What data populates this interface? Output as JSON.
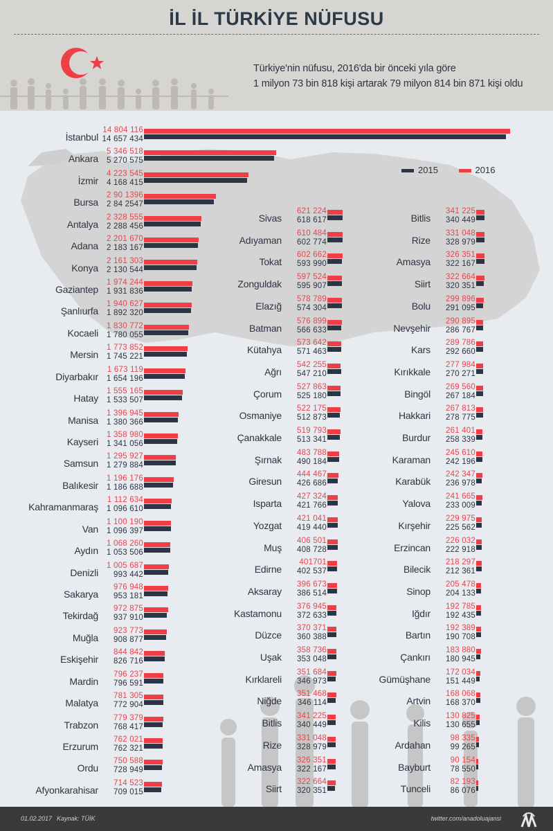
{
  "header": {
    "title": "İL İL TÜRKİYE NÜFUSU",
    "subtitle_line1": "Türkiye'nin nüfusu, 2016'da bir önceki yıla göre",
    "subtitle_line2": "1 milyon 73 bin 818 kişi artarak 79 milyon 814 bin 871 kişi oldu"
  },
  "legend": {
    "label_2015": "2015",
    "label_2016": "2016",
    "color_2015": "#2c3544",
    "color_2016": "#ef3e45"
  },
  "footer": {
    "date": "01.02.2017",
    "source": "Kaynak: TÜİK",
    "twitter": "twitter.com/anadoluajansi",
    "logo_text": "AA"
  },
  "chart_data": {
    "type": "bar",
    "orientation": "horizontal",
    "title": "İL İL TÜRKİYE NÜFUSU",
    "series": [
      {
        "name": "2015",
        "color": "#2c3544"
      },
      {
        "name": "2016",
        "color": "#ef3e45"
      }
    ],
    "columns": [
      {
        "rows": [
          {
            "province": "İstanbul",
            "v2016": "14 804 116",
            "v2015": "14 657 434"
          },
          {
            "province": "Ankara",
            "v2016": "5 346 518",
            "v2015": "5 270 575"
          },
          {
            "province": "İzmir",
            "v2016": "4 223 545",
            "v2015": "4 168 415"
          },
          {
            "province": "Bursa",
            "v2016": "2 90 1396",
            "v2015": "2 84 2547"
          },
          {
            "province": "Antalya",
            "v2016": "2 328 555",
            "v2015": "2 288 456"
          },
          {
            "province": "Adana",
            "v2016": "2 201 670",
            "v2015": "2 183 167"
          },
          {
            "province": "Konya",
            "v2016": "2 161 303",
            "v2015": "2 130 544"
          },
          {
            "province": "Gaziantep",
            "v2016": "1 974 244",
            "v2015": "1 931 836"
          },
          {
            "province": "Şanlıurfa",
            "v2016": "1 940 627",
            "v2015": "1 892 320"
          },
          {
            "province": "Kocaeli",
            "v2016": "1 830 772",
            "v2015": "1 780 055"
          },
          {
            "province": "Mersin",
            "v2016": "1 773 852",
            "v2015": "1 745 221"
          },
          {
            "province": "Diyarbakır",
            "v2016": "1 673 119",
            "v2015": "1 654 196"
          },
          {
            "province": "Hatay",
            "v2016": "1 555 165",
            "v2015": "1 533 507"
          },
          {
            "province": "Manisa",
            "v2016": "1 396 945",
            "v2015": "1 380 366"
          },
          {
            "province": "Kayseri",
            "v2016": "1 358 980",
            "v2015": "1 341 056"
          },
          {
            "province": "Samsun",
            "v2016": "1 295 927",
            "v2015": "1 279 884"
          },
          {
            "province": "Balıkesir",
            "v2016": "1 196 176",
            "v2015": "1 186 688"
          },
          {
            "province": "Kahramanmaraş",
            "v2016": "1 112 634",
            "v2015": "1 096 610"
          },
          {
            "province": "Van",
            "v2016": "1 100 190",
            "v2015": "1 096 397"
          },
          {
            "province": "Aydın",
            "v2016": "1 068 260",
            "v2015": "1 053 506"
          },
          {
            "province": "Denizli",
            "v2016": "1 005 687",
            "v2015": "993 442"
          },
          {
            "province": "Sakarya",
            "v2016": "976 948",
            "v2015": "953 181"
          },
          {
            "province": "Tekirdağ",
            "v2016": "972 875",
            "v2015": "937 910"
          },
          {
            "province": "Muğla",
            "v2016": "923 773",
            "v2015": "908 877"
          },
          {
            "province": "Eskişehir",
            "v2016": "844 842",
            "v2015": "826 716"
          },
          {
            "province": "Mardin",
            "v2016": "796 237",
            "v2015": "796 591"
          },
          {
            "province": "Malatya",
            "v2016": "781 305",
            "v2015": "772 904"
          },
          {
            "province": "Trabzon",
            "v2016": "779 379",
            "v2015": "768 417"
          },
          {
            "province": "Erzurum",
            "v2016": "762 021",
            "v2015": "762 321"
          },
          {
            "province": "Ordu",
            "v2016": "750 588",
            "v2015": "728 949"
          },
          {
            "province": "Afyonkarahisar",
            "v2016": "714 523",
            "v2015": "709 015"
          }
        ]
      },
      {
        "rows": [
          {
            "province": "Sivas",
            "v2016": "621 224",
            "v2015": "618 617"
          },
          {
            "province": "Adıyaman",
            "v2016": "610 484",
            "v2015": "602 774"
          },
          {
            "province": "Tokat",
            "v2016": "602 662",
            "v2015": "593 990"
          },
          {
            "province": "Zonguldak",
            "v2016": "597 524",
            "v2015": "595 907"
          },
          {
            "province": "Elazığ",
            "v2016": "578 789",
            "v2015": "574 304"
          },
          {
            "province": "Batman",
            "v2016": "576 899",
            "v2015": "566 633"
          },
          {
            "province": "Kütahya",
            "v2016": "573 642",
            "v2015": "571 463"
          },
          {
            "province": "Ağrı",
            "v2016": "542 255",
            "v2015": "547 210"
          },
          {
            "province": "Çorum",
            "v2016": "527 863",
            "v2015": "525 180"
          },
          {
            "province": "Osmaniye",
            "v2016": "522 175",
            "v2015": "512 873"
          },
          {
            "province": "Çanakkale",
            "v2016": "519 793",
            "v2015": "513 341"
          },
          {
            "province": "Şırnak",
            "v2016": "483 788",
            "v2015": "490 184"
          },
          {
            "province": "Giresun",
            "v2016": "444 467",
            "v2015": "426 686"
          },
          {
            "province": "Isparta",
            "v2016": "427 324",
            "v2015": "421 766"
          },
          {
            "province": "Yozgat",
            "v2016": "421 041",
            "v2015": "419 440"
          },
          {
            "province": "Muş",
            "v2016": "406 501",
            "v2015": "408 728"
          },
          {
            "province": "Edirne",
            "v2016": "401701",
            "v2015": "402 537"
          },
          {
            "province": "Aksaray",
            "v2016": "396 673",
            "v2015": "386 514"
          },
          {
            "province": "Kastamonu",
            "v2016": "376 945",
            "v2015": "372 633"
          },
          {
            "province": "Düzce",
            "v2016": "370 371",
            "v2015": "360 388"
          },
          {
            "province": "Uşak",
            "v2016": "358 736",
            "v2015": "353 048"
          },
          {
            "province": "Kırklareli",
            "v2016": "351 684",
            "v2015": "346 973"
          },
          {
            "province": "Niğde",
            "v2016": "351 468",
            "v2015": "346 114"
          },
          {
            "province": "Bitlis",
            "v2016": "341 225",
            "v2015": "340 449"
          },
          {
            "province": "Rize",
            "v2016": "331 048",
            "v2015": "328 979"
          },
          {
            "province": "Amasya",
            "v2016": "326 351",
            "v2015": "322 167"
          },
          {
            "province": "Siirt",
            "v2016": "322 664",
            "v2015": "320 351"
          }
        ]
      },
      {
        "rows": [
          {
            "province": "Bitlis",
            "v2016": "341 225",
            "v2015": "340 449"
          },
          {
            "province": "Rize",
            "v2016": "331 048",
            "v2015": "328 979"
          },
          {
            "province": "Amasya",
            "v2016": "326 351",
            "v2015": "322 167"
          },
          {
            "province": "Siirt",
            "v2016": "322 664",
            "v2015": "320 351"
          },
          {
            "province": "Bolu",
            "v2016": "299 896",
            "v2015": "291 095"
          },
          {
            "province": "Nevşehir",
            "v2016": "290 895",
            "v2015": "286 767"
          },
          {
            "province": "Kars",
            "v2016": "289 786",
            "v2015": "292 660"
          },
          {
            "province": "Kırıkkale",
            "v2016": "277 984",
            "v2015": "270 271"
          },
          {
            "province": "Bingöl",
            "v2016": "269 560",
            "v2015": "267 184"
          },
          {
            "province": "Hakkari",
            "v2016": "267 813",
            "v2015": "278 775"
          },
          {
            "province": "Burdur",
            "v2016": "261 401",
            "v2015": "258 339"
          },
          {
            "province": "Karaman",
            "v2016": "245 610",
            "v2015": "242 196"
          },
          {
            "province": "Karabük",
            "v2016": "242 347",
            "v2015": "236 978"
          },
          {
            "province": "Yalova",
            "v2016": "241 665",
            "v2015": "233 009"
          },
          {
            "province": "Kırşehir",
            "v2016": "229 975",
            "v2015": "225 562"
          },
          {
            "province": "Erzincan",
            "v2016": "226 032",
            "v2015": "222 918"
          },
          {
            "province": "Bilecik",
            "v2016": "218 297",
            "v2015": "212 361"
          },
          {
            "province": "Sinop",
            "v2016": "205 478",
            "v2015": "204 133"
          },
          {
            "province": "Iğdır",
            "v2016": "192 785",
            "v2015": "192 435"
          },
          {
            "province": "Bartın",
            "v2016": "192 389",
            "v2015": "190 708"
          },
          {
            "province": "Çankırı",
            "v2016": "183 880",
            "v2015": "180 945"
          },
          {
            "province": "Gümüşhane",
            "v2016": "172 034",
            "v2015": "151 449"
          },
          {
            "province": "Artvin",
            "v2016": "168 068",
            "v2015": "168 370"
          },
          {
            "province": "Kilis",
            "v2016": "130 825",
            "v2015": "130 655"
          },
          {
            "province": "Ardahan",
            "v2016": "98 335",
            "v2015": "99 265"
          },
          {
            "province": "Bayburt",
            "v2016": "90 154",
            "v2015": "78 550"
          },
          {
            "province": "Tunceli",
            "v2016": "82 193",
            "v2015": "86 076"
          }
        ]
      }
    ]
  }
}
